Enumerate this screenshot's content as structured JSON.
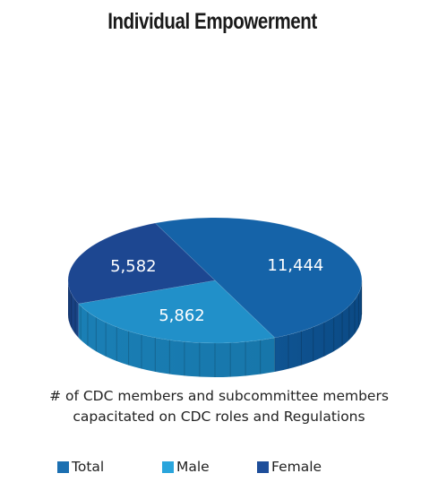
{
  "title": "Individual Empowerment",
  "caption": {
    "line1": "# of CDC members and subcommittee members",
    "line2": "capacitated on CDC roles  and Regulations"
  },
  "legend": {
    "items": [
      {
        "label": "Total",
        "color": "#1b6fb1"
      },
      {
        "label": "Male",
        "color": "#2aa5dc"
      },
      {
        "label": "Female",
        "color": "#1e4e9a"
      }
    ]
  },
  "chart_data": {
    "type": "pie",
    "style": "3d",
    "slices": [
      {
        "label": "Total",
        "value": 11444,
        "display": "11,444",
        "color": "#1563a8"
      },
      {
        "label": "Male",
        "value": 5862,
        "display": "5,862",
        "color": "#2190c9"
      },
      {
        "label": "Female",
        "value": 5582,
        "display": "5,582",
        "color": "#1d4791"
      }
    ]
  }
}
